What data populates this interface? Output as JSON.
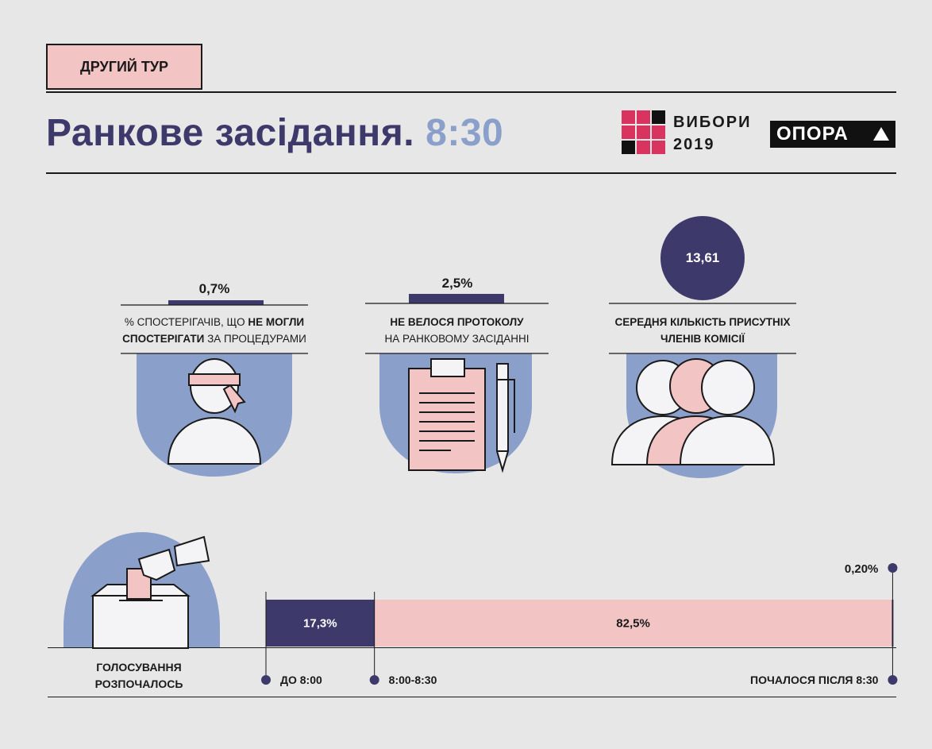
{
  "header": {
    "tag": "ДРУГИЙ ТУР",
    "title": "Ранкове засідання.",
    "title_time": "8:30",
    "logo_line1": "ВИБОРИ",
    "logo_line2": "2019",
    "brand": "ОПОРА"
  },
  "stats": [
    {
      "value": "0,7%",
      "caption_pre": "% спостерігачів, що ",
      "caption_bold": "не могли спостерігати",
      "caption_post": " за процедурами"
    },
    {
      "value": "2,5%",
      "caption_bold": "не велося протоколу",
      "caption_post": "на ранковому засіданні"
    },
    {
      "value": "13,61",
      "caption_bold": "середня кількість присутніх членів комісії"
    }
  ],
  "voting": {
    "label_line1": "ГОЛОСУВАННЯ",
    "label_line2": "РОЗПОЧАЛОСЬ"
  },
  "chart_data": {
    "type": "bar",
    "orientation": "horizontal-stacked",
    "title": "ГОЛОСУВАННЯ РОЗПОЧАЛОСЬ",
    "categories": [
      "ДО 8:00",
      "8:00-8:30",
      "ПОЧАЛОСЯ ПІСЛЯ 8:30"
    ],
    "values": [
      17.3,
      82.5,
      0.2
    ],
    "labels": [
      "17,3%",
      "82,5%",
      "0,20%"
    ],
    "colors": [
      "#3d3a6b",
      "#f2c4c3",
      "#3d3a6b"
    ]
  },
  "colors": {
    "accent": "#3d3a6b",
    "pink": "#f2c4c3",
    "blue": "#8a9fc9",
    "logo_pink": "#d9335f"
  }
}
